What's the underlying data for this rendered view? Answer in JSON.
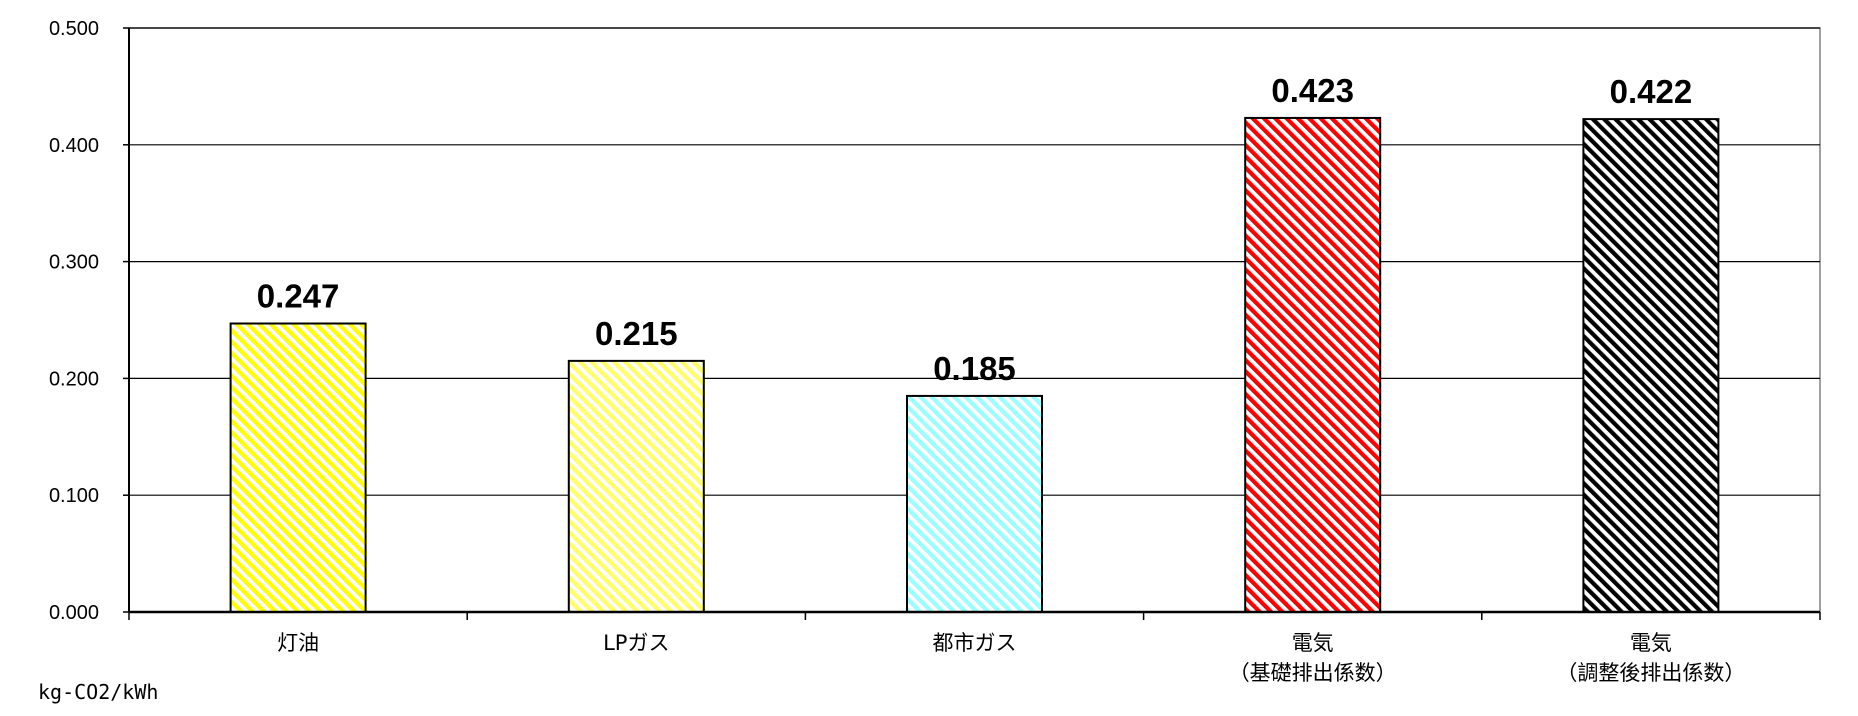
{
  "chart_data": {
    "type": "bar",
    "categories": [
      "灯油",
      "LPガス",
      "都市ガス",
      "電気\n（基礎排出係数）",
      "電気\n（調整後排出係数）"
    ],
    "values": [
      0.247,
      0.215,
      0.185,
      0.423,
      0.422
    ],
    "data_labels": [
      "0.247",
      "0.215",
      "0.185",
      "0.423",
      "0.422"
    ],
    "bar_colors": [
      "#ffff00",
      "#ffff66",
      "#99ffff",
      "#ff0000",
      "#000000"
    ],
    "ylim": [
      0,
      0.5
    ],
    "yticks": [
      "0.000",
      "0.100",
      "0.200",
      "0.300",
      "0.400",
      "0.500"
    ],
    "grid": true,
    "legend": "none",
    "unit": "kg-CO2/kWh"
  }
}
